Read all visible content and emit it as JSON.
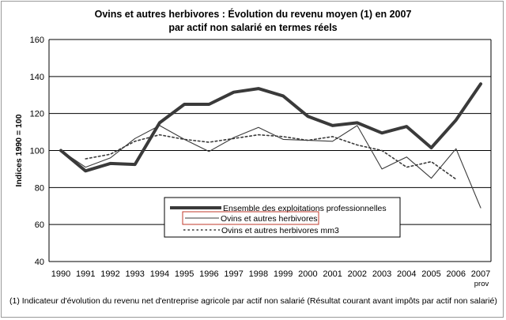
{
  "chart_data": {
    "type": "line",
    "title": "Ovins et autres herbivores : Évolution du revenu moyen (1) en 2007",
    "subtitle": "par actif non salarié en termes réels",
    "ylabel": "Indices 1990 = 100",
    "xlabel": "",
    "ylim": [
      40,
      160
    ],
    "yticks": [
      40,
      60,
      80,
      100,
      120,
      140,
      160
    ],
    "grid": true,
    "categories": [
      "1990",
      "1991",
      "1992",
      "1993",
      "1994",
      "1995",
      "1996",
      "1997",
      "1998",
      "1999",
      "2000",
      "2001",
      "2002",
      "2003",
      "2004",
      "2005",
      "2006",
      "2007"
    ],
    "category_sublabel": {
      "2007": "prov"
    },
    "legend_position": "bottom-center",
    "series": [
      {
        "name": "Ensemble des exploitations professionnelles",
        "style": "thick",
        "color": "#3a3a3a",
        "values": [
          100,
          89,
          93,
          92.5,
          115,
          125,
          125,
          131.5,
          133.5,
          129.5,
          118.5,
          113.5,
          115,
          109.5,
          113,
          101.5,
          116.5,
          136
        ]
      },
      {
        "name": "Ovins et autres herbivores",
        "style": "thin",
        "color": "#3a3a3a",
        "values": [
          100,
          91,
          96,
          106.5,
          113.5,
          106,
          99.5,
          107,
          112.5,
          106,
          105.5,
          105,
          113.5,
          90,
          96.5,
          85,
          101,
          69
        ]
      },
      {
        "name": "Ovins et autres herbivores mm3",
        "style": "dotted",
        "color": "#3a3a3a",
        "values": [
          null,
          95.5,
          98,
          105,
          108.5,
          106,
          104.5,
          106.5,
          108.5,
          107.5,
          105.5,
          107.5,
          103,
          100,
          91,
          94,
          84.5,
          null
        ]
      }
    ]
  },
  "footnote": "(1) Indicateur d'évolution du revenu net d'entreprise agricole par actif non salarié (Résultat courant avant impôts par actif non salarié)"
}
